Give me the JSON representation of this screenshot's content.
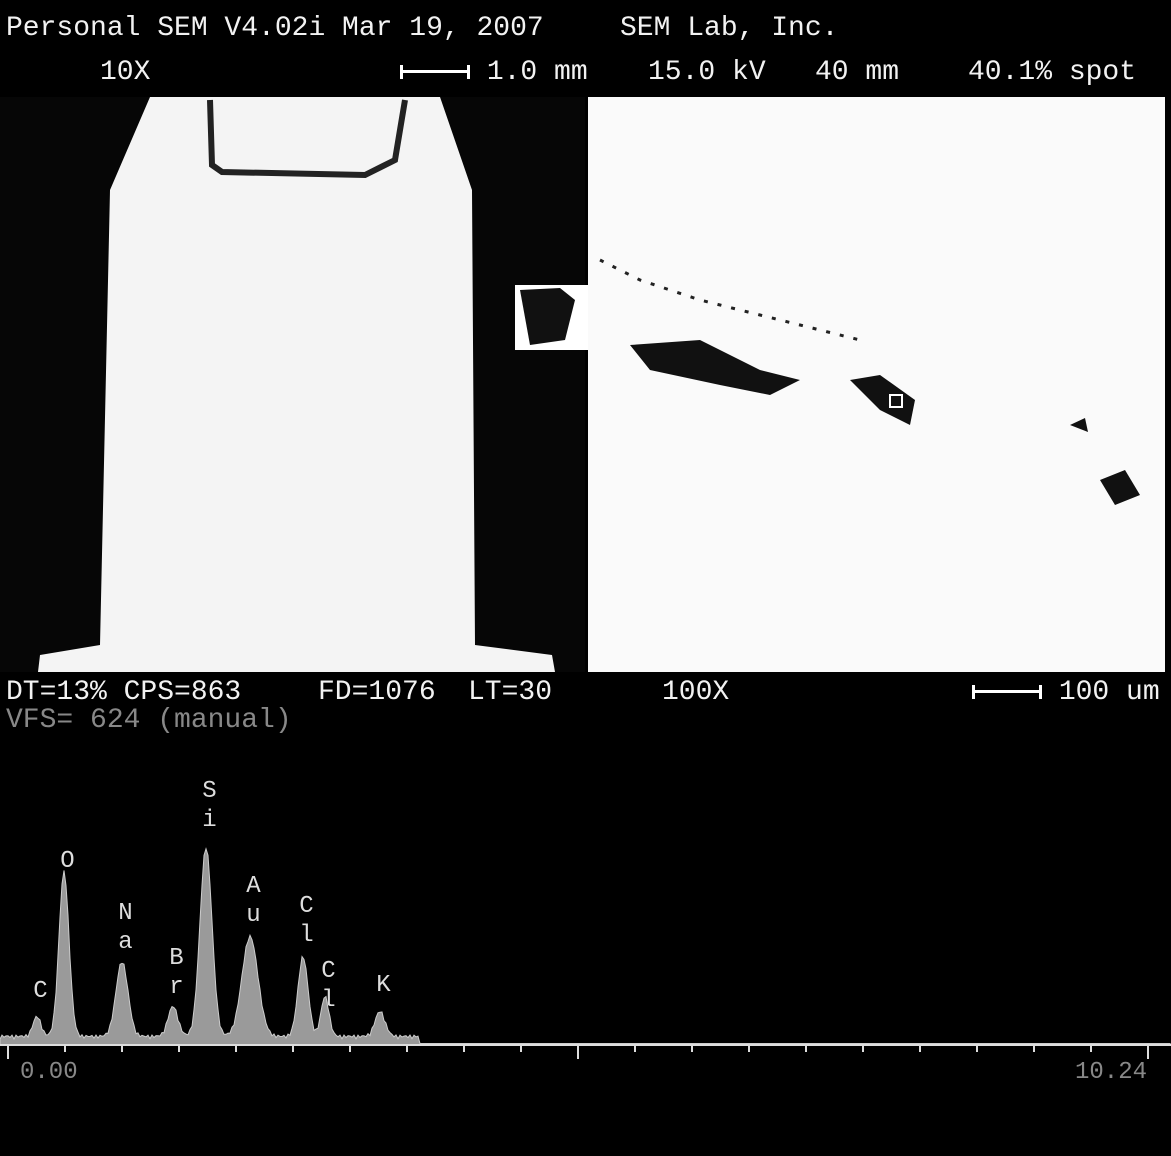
{
  "header": {
    "software": "Personal SEM V4.02i Mar 19, 2007",
    "company": "SEM Lab, Inc.",
    "magnification": "10X",
    "scale_bar": "1.0 mm",
    "voltage": "15.0 kV",
    "working_distance": "40 mm",
    "spot": "40.1% spot"
  },
  "image_info": {
    "dead_time_cps": "DT=13% CPS=863",
    "fd": "FD=1076",
    "lt": "LT=30",
    "magnification": "100X",
    "scale_bar": "100 um"
  },
  "spectrum": {
    "vfs": "VFS= 624 (manual)",
    "peaks": [
      "C",
      "O",
      "Na",
      "Br",
      "Si",
      "Au",
      "Cl",
      "Cl",
      "K"
    ],
    "axis_start": "0.00",
    "axis_end": "10.24"
  }
}
